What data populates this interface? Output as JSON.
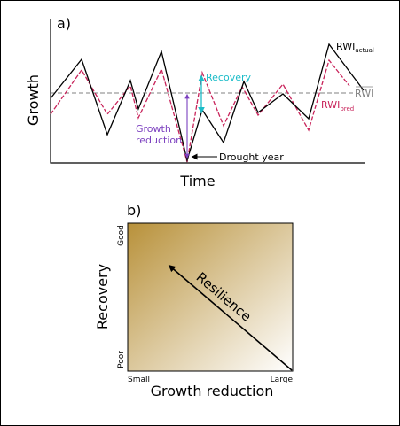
{
  "panel_a": {
    "label": "a)",
    "ylabel": "Growth",
    "xlabel": "Time",
    "rwi_actual": {
      "main": "RWI",
      "sub": "actual"
    },
    "rwi_pred": {
      "main": "RWI",
      "sub": "pred"
    },
    "rwi_mean": "RWI",
    "recovery": "Recovery",
    "growth_reduction_1": "Growth",
    "growth_reduction_2": "reduction",
    "drought_year": "Drought year",
    "colors": {
      "actual": "#000000",
      "pred": "#c8235a",
      "mean": "#808080",
      "recovery": "#1bbcc8",
      "growth_reduction": "#7b3fbf"
    }
  },
  "panel_b": {
    "label": "b)",
    "ylabel": "Recovery",
    "xlabel": "Growth reduction",
    "y_top": "Good",
    "y_bottom": "Poor",
    "x_left": "Small",
    "x_right": "Large",
    "arrow_label": "Resilience",
    "colors": {
      "gradient_start": "#b8913a",
      "gradient_end": "#ffffff"
    }
  }
}
